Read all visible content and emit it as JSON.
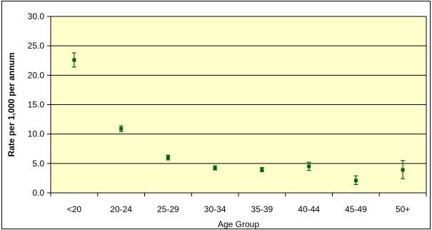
{
  "chart_data": {
    "type": "scatter",
    "title": "",
    "xlabel": "Age Group",
    "ylabel": "Rate per 1,000 per annum",
    "categories": [
      "<20",
      "20-24",
      "25-29",
      "30-34",
      "35-39",
      "40-44",
      "45-49",
      "50+"
    ],
    "series": [
      {
        "values": [
          22.6,
          10.9,
          6.0,
          4.2,
          3.9,
          4.5,
          2.1,
          3.9
        ],
        "lower": [
          21.4,
          10.4,
          5.6,
          3.9,
          3.6,
          3.8,
          1.4,
          2.4
        ],
        "upper": [
          23.8,
          11.4,
          6.4,
          4.6,
          4.3,
          5.2,
          2.9,
          5.5
        ]
      }
    ],
    "ylim": [
      0,
      30
    ],
    "yticks": [
      "0.0",
      "5.0",
      "10.0",
      "15.0",
      "20.0",
      "25.0",
      "30.0"
    ],
    "grid": true,
    "colors": {
      "plot_bg": "#ffffcc",
      "marker": "#006600",
      "gridline": "#000000"
    }
  }
}
